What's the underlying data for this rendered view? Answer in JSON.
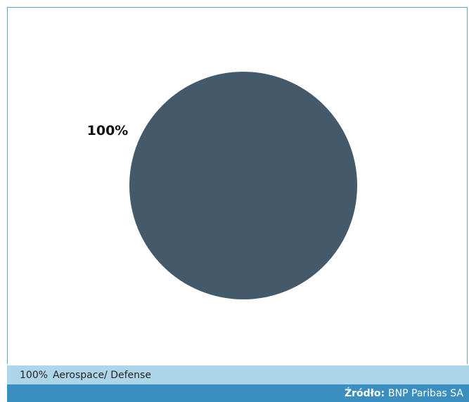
{
  "chart_data": {
    "type": "pie",
    "slices": [
      {
        "label": "Aerospace/ Defense",
        "value": 100,
        "value_label": "100%",
        "color": "#44596a"
      }
    ]
  },
  "legend": {
    "items": [
      {
        "pct": "100%",
        "label": "Aerospace/ Defense"
      }
    ]
  },
  "source": {
    "label": "Źródło:",
    "value": "BNP Paribas SA"
  },
  "colors": {
    "frame_border": "#5ba8cf",
    "legend_bg": "#aed6ea",
    "source_bg": "#3a8fc0"
  }
}
